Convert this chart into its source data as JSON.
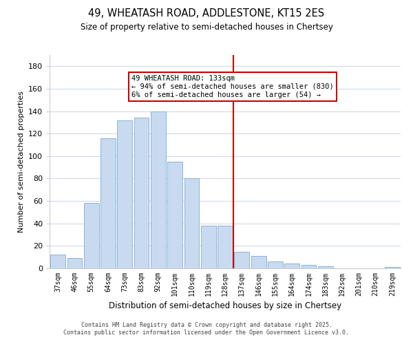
{
  "title": "49, WHEATASH ROAD, ADDLESTONE, KT15 2ES",
  "subtitle": "Size of property relative to semi-detached houses in Chertsey",
  "xlabel": "Distribution of semi-detached houses by size in Chertsey",
  "ylabel": "Number of semi-detached properties",
  "categories": [
    "37sqm",
    "46sqm",
    "55sqm",
    "64sqm",
    "73sqm",
    "83sqm",
    "92sqm",
    "101sqm",
    "110sqm",
    "119sqm",
    "128sqm",
    "137sqm",
    "146sqm",
    "155sqm",
    "164sqm",
    "174sqm",
    "183sqm",
    "192sqm",
    "201sqm",
    "210sqm",
    "219sqm"
  ],
  "values": [
    12,
    9,
    58,
    116,
    132,
    134,
    140,
    95,
    80,
    38,
    38,
    15,
    11,
    6,
    4,
    3,
    2,
    0,
    0,
    0,
    1
  ],
  "bar_color": "#c8daf0",
  "bar_edge_color": "#8ab4d8",
  "vline_color": "#cc0000",
  "ylim": [
    0,
    190
  ],
  "yticks": [
    0,
    20,
    40,
    60,
    80,
    100,
    120,
    140,
    160,
    180
  ],
  "annotation_title": "49 WHEATASH ROAD: 133sqm",
  "annotation_line1": "← 94% of semi-detached houses are smaller (830)",
  "annotation_line2": "6% of semi-detached houses are larger (54) →",
  "annotation_box_color": "#ffffff",
  "annotation_border_color": "#cc0000",
  "footer_line1": "Contains HM Land Registry data © Crown copyright and database right 2025.",
  "footer_line2": "Contains public sector information licensed under the Open Government Licence v3.0.",
  "background_color": "#ffffff",
  "grid_color": "#d0d8e8"
}
